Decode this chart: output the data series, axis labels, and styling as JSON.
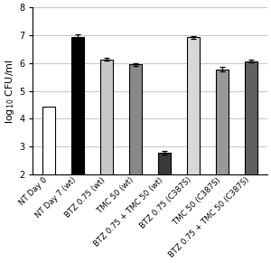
{
  "categories": [
    "NT Day 0",
    "NT Day 7 (wt)",
    "BTZ 0.75 (wt)",
    "TMC 50 (wt)",
    "BTZ 0.75 + TMC 50 (wt)",
    "BTZ 0.75 (C387S)",
    "TMC 50 (C387S)",
    "BTZ 0.75 + TMC 50 (C387S)"
  ],
  "values": [
    4.45,
    6.92,
    6.13,
    5.95,
    2.78,
    6.92,
    5.77,
    6.07
  ],
  "errors": [
    0.0,
    0.1,
    0.05,
    0.05,
    0.07,
    0.04,
    0.08,
    0.04
  ],
  "bar_colors": [
    "#ffffff",
    "#000000",
    "#c8c8c8",
    "#888888",
    "#3a3a3a",
    "#d8d8d8",
    "#999999",
    "#606060"
  ],
  "bar_edgecolors": [
    "#000000",
    "#000000",
    "#000000",
    "#000000",
    "#000000",
    "#000000",
    "#000000",
    "#000000"
  ],
  "ylabel": "log$_{10}$ CFU/ml",
  "ylim": [
    2,
    8
  ],
  "yticks": [
    2,
    3,
    4,
    5,
    6,
    7,
    8
  ],
  "ylabel_fontsize": 8,
  "tick_fontsize": 7,
  "xlabel_fontsize": 6.2,
  "background_color": "#ffffff",
  "grid_color": "#bbbbbb",
  "bar_width": 0.45,
  "figsize": [
    3.0,
    2.91
  ],
  "dpi": 100
}
